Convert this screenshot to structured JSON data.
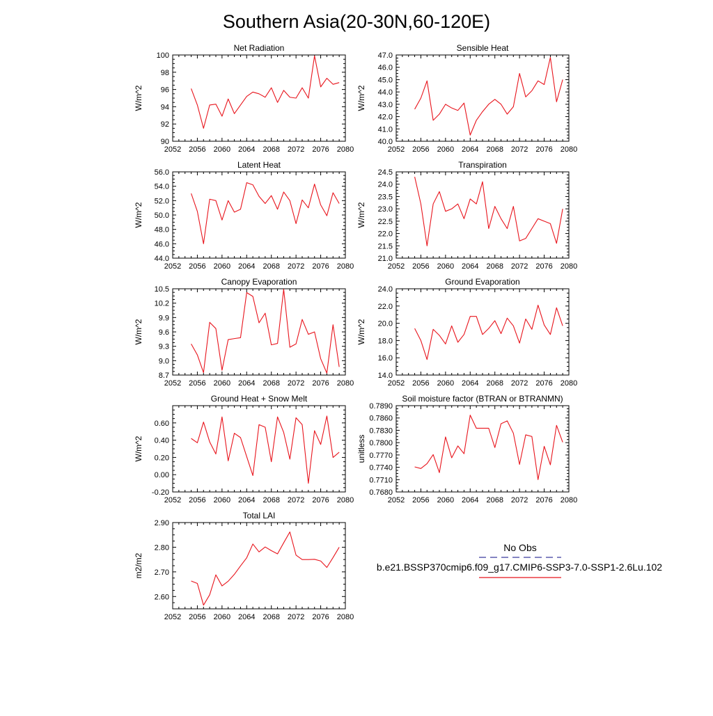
{
  "page_title": "Southern Asia(20-30N,60-120E)",
  "series_color": "#e8141c",
  "obs_color": "#3a3a9e",
  "legend": {
    "obs_label": "No Obs",
    "model_label": "b.e21.BSSP370cmip6.f09_g17.CMIP6-SSP3-7.0-SSP1-2.6Lu.102"
  },
  "chart_data": [
    {
      "type": "line",
      "title": "Net Radiation",
      "ylabel": "W/m^2",
      "xlim": [
        2052,
        2080
      ],
      "ylim": [
        90,
        100
      ],
      "xticks": [
        "2052",
        "2056",
        "2060",
        "2064",
        "2068",
        "2072",
        "2076",
        "2080"
      ],
      "yticks": [
        "90",
        "92",
        "94",
        "96",
        "98",
        "100"
      ],
      "x": [
        2055,
        2056,
        2057,
        2058,
        2059,
        2060,
        2061,
        2062,
        2063,
        2064,
        2065,
        2066,
        2067,
        2068,
        2069,
        2070,
        2071,
        2072,
        2073,
        2074,
        2075,
        2076,
        2077,
        2078,
        2079
      ],
      "values": [
        96.1,
        94.2,
        91.5,
        94.2,
        94.3,
        92.9,
        94.9,
        93.2,
        94.2,
        95.2,
        95.7,
        95.5,
        95.1,
        96.2,
        94.5,
        95.9,
        95.1,
        95.0,
        96.2,
        95.0,
        99.9,
        96.3,
        97.3,
        96.6,
        96.8
      ]
    },
    {
      "type": "line",
      "title": "Sensible Heat",
      "ylabel": "W/m^2",
      "xlim": [
        2052,
        2080
      ],
      "ylim": [
        40,
        47
      ],
      "xticks": [
        "2052",
        "2056",
        "2060",
        "2064",
        "2068",
        "2072",
        "2076",
        "2080"
      ],
      "yticks": [
        "40.0",
        "41.0",
        "42.0",
        "43.0",
        "44.0",
        "45.0",
        "46.0",
        "47.0"
      ],
      "x": [
        2055,
        2056,
        2057,
        2058,
        2059,
        2060,
        2061,
        2062,
        2063,
        2064,
        2065,
        2066,
        2067,
        2068,
        2069,
        2070,
        2071,
        2072,
        2073,
        2074,
        2075,
        2076,
        2077,
        2078,
        2079
      ],
      "values": [
        42.6,
        43.5,
        44.9,
        41.7,
        42.2,
        43.0,
        42.7,
        42.5,
        43.1,
        40.5,
        41.7,
        42.4,
        43.0,
        43.4,
        43.0,
        42.2,
        42.8,
        45.5,
        43.6,
        44.1,
        44.9,
        44.6,
        46.8,
        43.2,
        45.0
      ]
    },
    {
      "type": "line",
      "title": "Latent Heat",
      "ylabel": "W/m^2",
      "xlim": [
        2052,
        2080
      ],
      "ylim": [
        44,
        56
      ],
      "xticks": [
        "2052",
        "2056",
        "2060",
        "2064",
        "2068",
        "2072",
        "2076",
        "2080"
      ],
      "yticks": [
        "44.0",
        "46.0",
        "48.0",
        "50.0",
        "52.0",
        "54.0",
        "56.0"
      ],
      "x": [
        2055,
        2056,
        2057,
        2058,
        2059,
        2060,
        2061,
        2062,
        2063,
        2064,
        2065,
        2066,
        2067,
        2068,
        2069,
        2070,
        2071,
        2072,
        2073,
        2074,
        2075,
        2076,
        2077,
        2078,
        2079
      ],
      "values": [
        53.0,
        50.5,
        46.0,
        52.2,
        52.0,
        49.3,
        52.0,
        50.4,
        50.8,
        54.5,
        54.2,
        52.6,
        51.6,
        52.7,
        50.8,
        53.2,
        52.0,
        48.8,
        52.1,
        51.0,
        54.3,
        51.4,
        49.9,
        53.1,
        51.6
      ]
    },
    {
      "type": "line",
      "title": "Transpiration",
      "ylabel": "W/m^2",
      "xlim": [
        2052,
        2080
      ],
      "ylim": [
        21,
        24.5
      ],
      "xticks": [
        "2052",
        "2056",
        "2060",
        "2064",
        "2068",
        "2072",
        "2076",
        "2080"
      ],
      "yticks": [
        "21.0",
        "21.5",
        "22.0",
        "22.5",
        "23.0",
        "23.5",
        "24.0",
        "24.5"
      ],
      "x": [
        2055,
        2056,
        2057,
        2058,
        2059,
        2060,
        2061,
        2062,
        2063,
        2064,
        2065,
        2066,
        2067,
        2068,
        2069,
        2070,
        2071,
        2072,
        2073,
        2074,
        2075,
        2076,
        2077,
        2078,
        2079
      ],
      "values": [
        24.3,
        23.2,
        21.5,
        23.2,
        23.7,
        22.9,
        23.0,
        23.2,
        22.6,
        23.4,
        23.2,
        24.1,
        22.2,
        23.1,
        22.6,
        22.2,
        23.1,
        21.7,
        21.8,
        22.2,
        22.6,
        22.5,
        22.4,
        21.6,
        23.0
      ]
    },
    {
      "type": "line",
      "title": "Canopy Evaporation",
      "ylabel": "W/m^2",
      "xlim": [
        2052,
        2080
      ],
      "ylim": [
        8.7,
        10.5
      ],
      "xticks": [
        "2052",
        "2056",
        "2060",
        "2064",
        "2068",
        "2072",
        "2076",
        "2080"
      ],
      "yticks": [
        "8.7",
        "9.0",
        "9.3",
        "9.6",
        "9.9",
        "10.2",
        "10.5"
      ],
      "x": [
        2055,
        2056,
        2057,
        2058,
        2059,
        2060,
        2061,
        2062,
        2063,
        2064,
        2065,
        2066,
        2067,
        2068,
        2069,
        2070,
        2071,
        2072,
        2073,
        2074,
        2075,
        2076,
        2077,
        2078,
        2079
      ],
      "values": [
        9.35,
        9.12,
        8.75,
        9.8,
        9.67,
        8.8,
        9.44,
        9.46,
        9.48,
        10.42,
        10.34,
        9.79,
        9.99,
        9.33,
        9.36,
        10.49,
        9.28,
        9.35,
        9.86,
        9.55,
        9.6,
        9.04,
        8.74,
        9.75,
        8.87
      ]
    },
    {
      "type": "line",
      "title": "Ground Evaporation",
      "ylabel": "W/m^2",
      "xlim": [
        2052,
        2080
      ],
      "ylim": [
        14,
        24
      ],
      "xticks": [
        "2052",
        "2056",
        "2060",
        "2064",
        "2068",
        "2072",
        "2076",
        "2080"
      ],
      "yticks": [
        "14.0",
        "16.0",
        "18.0",
        "20.0",
        "22.0",
        "24.0"
      ],
      "x": [
        2055,
        2056,
        2057,
        2058,
        2059,
        2060,
        2061,
        2062,
        2063,
        2064,
        2065,
        2066,
        2067,
        2068,
        2069,
        2070,
        2071,
        2072,
        2073,
        2074,
        2075,
        2076,
        2077,
        2078,
        2079
      ],
      "values": [
        19.4,
        18.0,
        15.8,
        19.3,
        18.6,
        17.6,
        19.7,
        17.8,
        18.7,
        20.8,
        20.8,
        18.7,
        19.4,
        20.3,
        18.8,
        20.6,
        19.7,
        17.7,
        20.5,
        19.3,
        22.1,
        19.8,
        18.7,
        21.8,
        19.7
      ]
    },
    {
      "type": "line",
      "title": "Ground Heat + Snow Melt",
      "ylabel": "W/m^2",
      "xlim": [
        2052,
        2080
      ],
      "ylim": [
        -0.2,
        0.8
      ],
      "xticks": [
        "2052",
        "2056",
        "2060",
        "2064",
        "2068",
        "2072",
        "2076",
        "2080"
      ],
      "yticks": [
        "-0.20",
        "0.00",
        "0.20",
        "0.40",
        "0.60"
      ],
      "ytick_values": [
        -0.2,
        0.0,
        0.2,
        0.4,
        0.6
      ],
      "x": [
        2055,
        2056,
        2057,
        2058,
        2059,
        2060,
        2061,
        2062,
        2063,
        2064,
        2065,
        2066,
        2067,
        2068,
        2069,
        2070,
        2071,
        2072,
        2073,
        2074,
        2075,
        2076,
        2077,
        2078,
        2079
      ],
      "values": [
        0.42,
        0.37,
        0.61,
        0.38,
        0.24,
        0.67,
        0.16,
        0.48,
        0.43,
        0.21,
        -0.01,
        0.58,
        0.55,
        0.15,
        0.67,
        0.49,
        0.18,
        0.66,
        0.58,
        -0.1,
        0.51,
        0.35,
        0.68,
        0.2,
        0.26
      ]
    },
    {
      "type": "line",
      "title": "Soil moisture factor (BTRAN or BTRANMN)",
      "ylabel": "unitless",
      "xlim": [
        2052,
        2080
      ],
      "ylim": [
        0.768,
        0.789
      ],
      "xticks": [
        "2052",
        "2056",
        "2060",
        "2064",
        "2068",
        "2072",
        "2076",
        "2080"
      ],
      "yticks": [
        "0.7680",
        "0.7710",
        "0.7740",
        "0.7770",
        "0.7800",
        "0.7830",
        "0.7860",
        "0.7890"
      ],
      "x": [
        2055,
        2056,
        2057,
        2058,
        2059,
        2060,
        2061,
        2062,
        2063,
        2064,
        2065,
        2066,
        2067,
        2068,
        2069,
        2070,
        2071,
        2072,
        2073,
        2074,
        2075,
        2076,
        2077,
        2078,
        2079
      ],
      "values": [
        0.7741,
        0.7737,
        0.7749,
        0.7771,
        0.7727,
        0.7814,
        0.7763,
        0.7792,
        0.7773,
        0.7867,
        0.7835,
        0.7835,
        0.7835,
        0.7788,
        0.7846,
        0.7853,
        0.7823,
        0.7747,
        0.7819,
        0.7815,
        0.771,
        0.7791,
        0.7746,
        0.7842,
        0.7801
      ]
    },
    {
      "type": "line",
      "title": "Total LAI",
      "ylabel": "m2/m2",
      "xlim": [
        2052,
        2080
      ],
      "ylim": [
        2.55,
        2.9
      ],
      "xticks": [
        "2052",
        "2056",
        "2060",
        "2064",
        "2068",
        "2072",
        "2076",
        "2080"
      ],
      "yticks": [
        "2.60",
        "2.70",
        "2.80",
        "2.90"
      ],
      "ytick_values": [
        2.6,
        2.7,
        2.8,
        2.9
      ],
      "x": [
        2055,
        2056,
        2057,
        2058,
        2059,
        2060,
        2061,
        2062,
        2063,
        2064,
        2065,
        2066,
        2067,
        2068,
        2069,
        2070,
        2071,
        2072,
        2073,
        2074,
        2075,
        2076,
        2077,
        2078,
        2079
      ],
      "values": [
        2.663,
        2.653,
        2.565,
        2.607,
        2.688,
        2.643,
        2.662,
        2.69,
        2.724,
        2.757,
        2.813,
        2.781,
        2.801,
        2.786,
        2.773,
        2.818,
        2.862,
        2.768,
        2.75,
        2.75,
        2.751,
        2.744,
        2.718,
        2.758,
        2.8
      ]
    }
  ]
}
